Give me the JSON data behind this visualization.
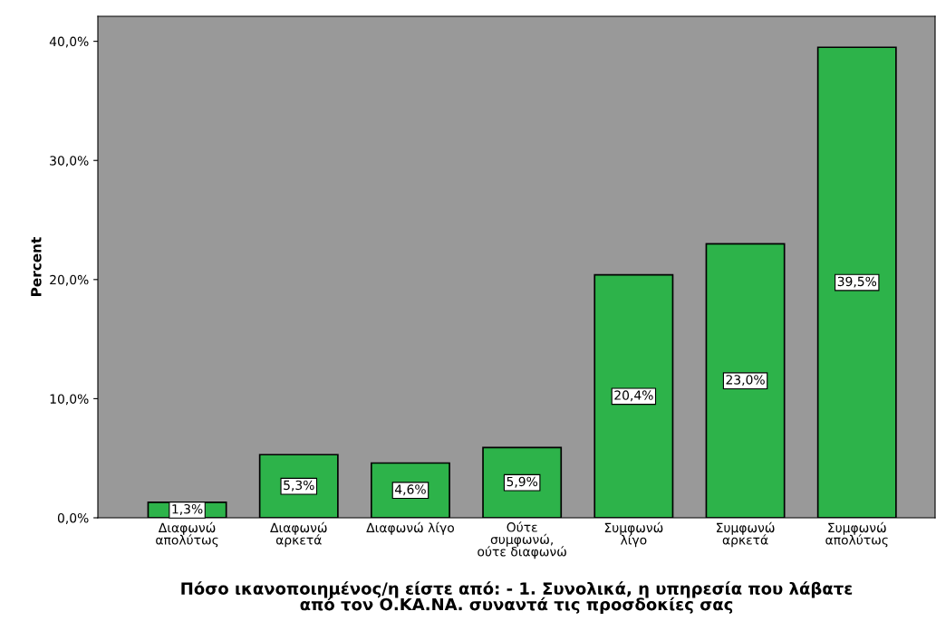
{
  "chart_data": {
    "type": "bar",
    "ylabel": "Percent",
    "xlabel": "Πόσο ικανοποιημένος/η είστε από: - 1. Συνολικά, η υπηρεσία που λάβατε\nαπό τον Ο.ΚΑ.ΝΑ. συναντά τις προσδοκίες σας",
    "categories": [
      "Διαφωνώ\nαπολύτως",
      "Διαφωνώ\nαρκετά",
      "Διαφωνώ λίγο",
      "Ούτε\nσυμφωνώ,\nούτε διαφωνώ",
      "Συμφωνώ\nλίγο",
      "Συμφωνώ\nαρκετά",
      "Συμφωνώ\nαπολύτως"
    ],
    "values": [
      1.3,
      5.3,
      4.6,
      5.9,
      20.4,
      23.0,
      39.5
    ],
    "value_labels": [
      "1,3%",
      "5,3%",
      "4,6%",
      "5,9%",
      "20,4%",
      "23,0%",
      "39,5%"
    ],
    "color": "#2db34a",
    "ylim": [
      0,
      42.1
    ],
    "yticks": [
      {
        "value": 0,
        "label": "0,0%"
      },
      {
        "value": 10,
        "label": "10,0%"
      },
      {
        "value": 20,
        "label": "20,0%"
      },
      {
        "value": 30,
        "label": "30,0%"
      },
      {
        "value": 40,
        "label": "40,0%"
      }
    ],
    "grid": false
  }
}
